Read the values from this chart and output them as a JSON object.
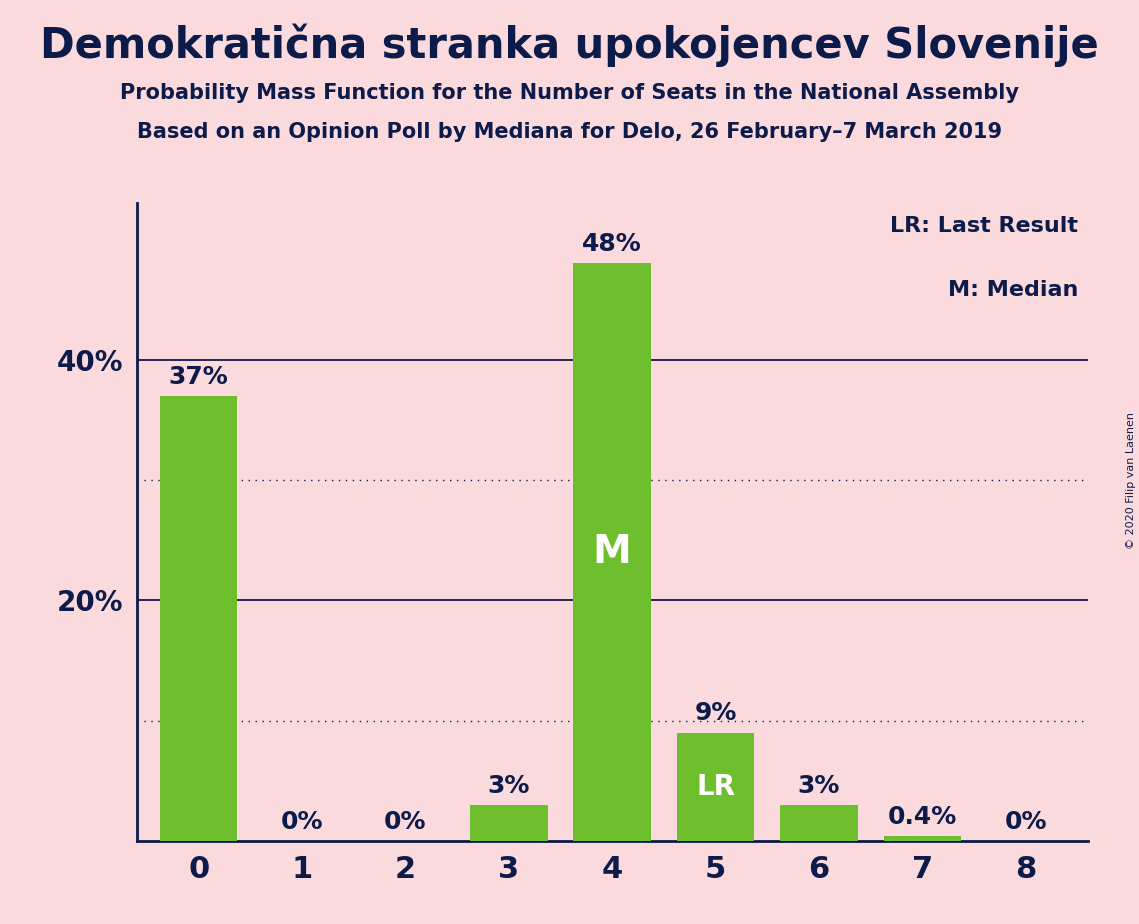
{
  "title": "Demokratična stranka upokojencev Slovenije",
  "subtitle1": "Probability Mass Function for the Number of Seats in the National Assembly",
  "subtitle2": "Based on an Opinion Poll by Mediana for Delo, 26 February–7 March 2019",
  "copyright": "© 2020 Filip van Laenen",
  "categories": [
    0,
    1,
    2,
    3,
    4,
    5,
    6,
    7,
    8
  ],
  "values": [
    37,
    0,
    0,
    3,
    48,
    9,
    3,
    0.4,
    0
  ],
  "bar_color": "#6dbf2e",
  "background_color": "#fadadd",
  "text_color": "#0d1b4b",
  "bar_labels": [
    "37%",
    "0%",
    "0%",
    "3%",
    "48%",
    "9%",
    "3%",
    "0.4%",
    "0%"
  ],
  "median_bar": 4,
  "lr_bar": 5,
  "median_label": "M",
  "lr_label": "LR",
  "legend_lr": "LR: Last Result",
  "legend_m": "M: Median",
  "yticks": [
    20,
    40
  ],
  "ytick_labels": [
    "20%",
    "40%"
  ],
  "solid_grid_lines": [
    20,
    40
  ],
  "dotted_grid_lines": [
    10,
    30
  ],
  "ylim": [
    0,
    53
  ]
}
